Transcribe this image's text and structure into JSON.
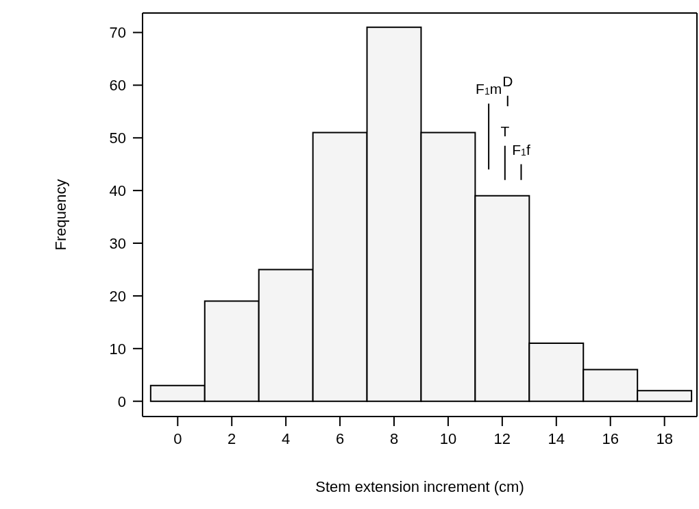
{
  "chart_data": {
    "type": "histogram",
    "xlabel": "Stem extension increment (cm)",
    "ylabel": "Frequency",
    "bins": [
      -1,
      1,
      3,
      5,
      7,
      9,
      11,
      13,
      15,
      17,
      19
    ],
    "values": [
      3,
      19,
      25,
      51,
      71,
      51,
      39,
      11,
      6,
      2
    ],
    "color": "#f4f4f4",
    "series": [
      {
        "type": "line",
        "color": "#000000",
        "x": [
          11.5,
          11.5
        ],
        "values": [
          44,
          56.5
        ]
      },
      {
        "type": "line",
        "color": "#000000",
        "x": [
          12.2,
          12.2
        ],
        "values": [
          56,
          58
        ]
      },
      {
        "type": "line",
        "color": "#000000",
        "x": [
          12.1,
          12.1
        ],
        "values": [
          42,
          48.5
        ]
      },
      {
        "type": "line",
        "color": "#000000",
        "x": [
          12.7,
          12.7
        ],
        "values": [
          42,
          45
        ]
      }
    ],
    "annotations": [
      {
        "text": "F$_{1}$m",
        "x": 11.5,
        "y": 56.5
      },
      {
        "text": "D",
        "x": 12.2,
        "y": 58
      },
      {
        "text": "T",
        "x": 12.1,
        "y": 48.5
      },
      {
        "text": "F$_{1}$f",
        "x": 12.7,
        "y": 45
      }
    ],
    "xlim": [
      -1.3,
      19.2
    ],
    "xticks": [
      0,
      2,
      4,
      6,
      8,
      10,
      12,
      14,
      16,
      18
    ],
    "ylim": [
      -2.9,
      73.7
    ],
    "yticks": [
      0,
      10,
      20,
      30,
      40,
      50,
      60,
      70
    ],
    "grid": false,
    "marker": "none"
  }
}
